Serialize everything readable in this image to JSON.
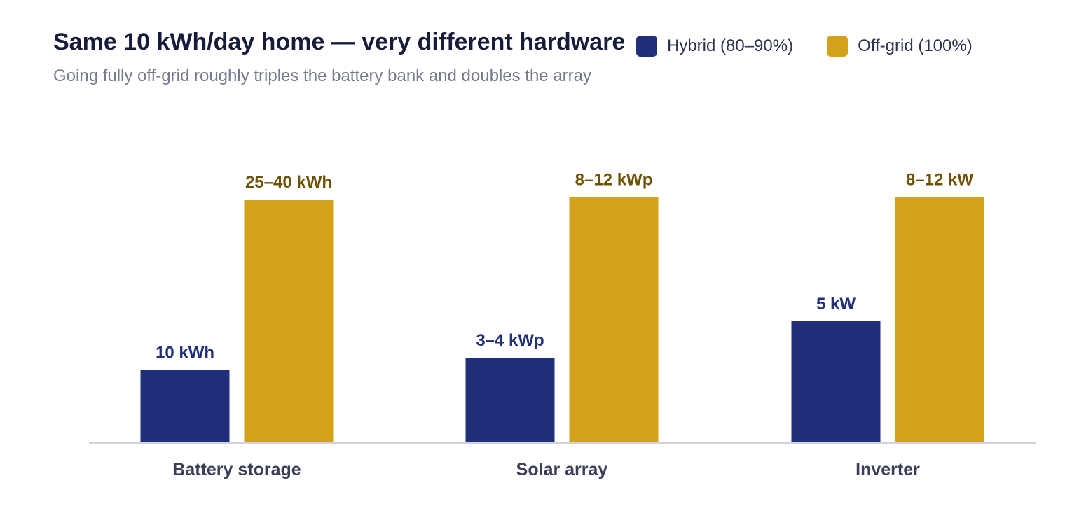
{
  "chart_data": {
    "type": "bar",
    "title": "Same 10 kWh/day home — very different hardware",
    "subtitle": "Going fully off-grid roughly triples the battery bank and doubles the array",
    "xlabel": "",
    "ylabel": "",
    "categories": [
      "Battery storage",
      "Solar array",
      "Inverter"
    ],
    "series": [
      {
        "name": "Hybrid (80–90%)",
        "color": "#212e7a",
        "label_color": "#212e7a",
        "values": [
          3.0,
          3.5,
          5.0
        ],
        "labels": [
          "10 kWh",
          "3–4 kWp",
          "5 kW"
        ]
      },
      {
        "name": "Off-grid (100%)",
        "color": "#d4a11b",
        "label_color": "#6e5204",
        "values": [
          10.0,
          10.1,
          10.1
        ],
        "labels": [
          "25–40 kWh",
          "8–12 kWp",
          "8–12 kW"
        ]
      }
    ],
    "ylim": [
      0,
      11
    ],
    "grid": false,
    "legend": "top-right",
    "axis_color": "#d2d2de",
    "category_label_color": "#3a3e58"
  }
}
